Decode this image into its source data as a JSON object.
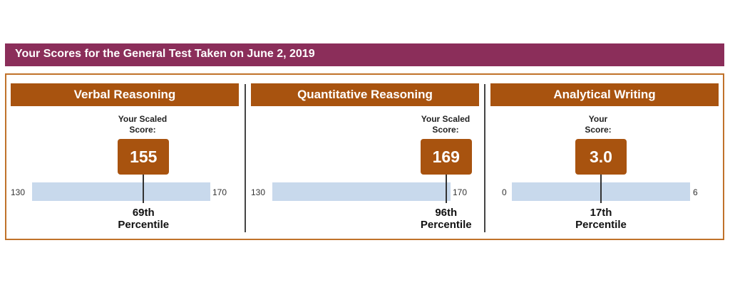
{
  "header": {
    "title": "Your Scores for the General Test Taken on June 2, 2019"
  },
  "sections": [
    {
      "name": "Verbal Reasoning",
      "score_label_line1": "Your Scaled",
      "score_label_line2": "Score:",
      "score": "155",
      "score_value": 155,
      "min": "130",
      "max": "170",
      "min_value": 130,
      "max_value": 170,
      "percentile_line1": "69th",
      "percentile_line2": "Percentile"
    },
    {
      "name": "Quantitative Reasoning",
      "score_label_line1": "Your Scaled",
      "score_label_line2": "Score:",
      "score": "169",
      "score_value": 169,
      "min": "130",
      "max": "170",
      "min_value": 130,
      "max_value": 170,
      "percentile_line1": "96th",
      "percentile_line2": "Percentile"
    },
    {
      "name": "Analytical Writing",
      "score_label_line1": "Your",
      "score_label_line2": "Score:",
      "score": "3.0",
      "score_value": 3.0,
      "min": "0",
      "max": "6",
      "min_value": 0,
      "max_value": 6,
      "percentile_line1": "17th",
      "percentile_line2": "Percentile"
    }
  ],
  "colors": {
    "title_bar": "#8b2e5a",
    "section_header": "#a8530f",
    "score_box": "#a8530f",
    "track": "#c8d9ec",
    "border": "#c0722a"
  }
}
